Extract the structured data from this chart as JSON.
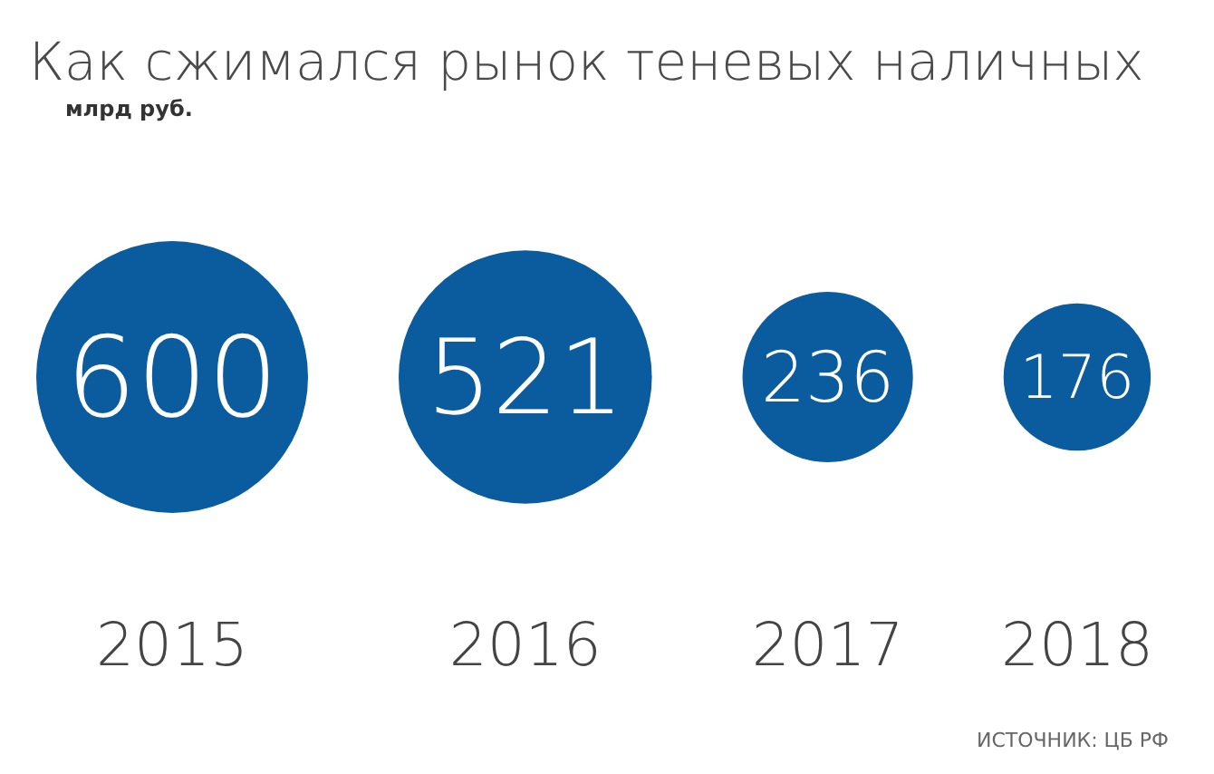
{
  "chart_data": {
    "type": "other",
    "title": "Как сжимался рынок теневых наличных",
    "subtitle": "млрд руб.",
    "categories": [
      "2015",
      "2016",
      "2017",
      "2018"
    ],
    "values": [
      600,
      521,
      236,
      176
    ],
    "color": "#0b5c9e",
    "data_labels": true,
    "annotations": [
      "ИСТОЧНИК: ЦБ РФ"
    ]
  }
}
